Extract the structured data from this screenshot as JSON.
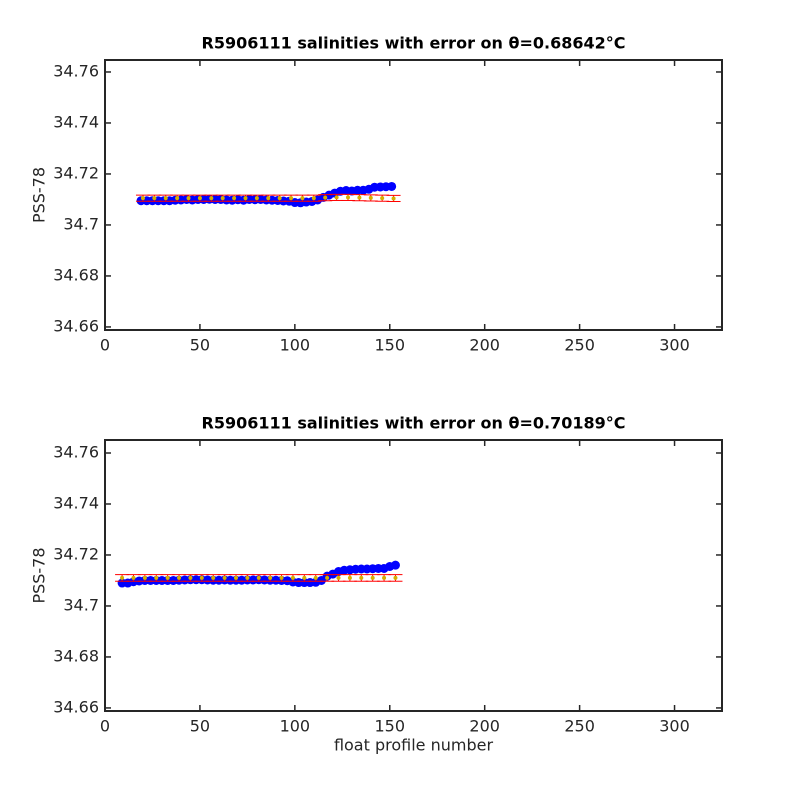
{
  "chart_data": [
    {
      "type": "errorbar",
      "title": "R5906111 salinities with error on θ=0.68642°C",
      "ylabel": "PSS-78",
      "xlim": [
        0,
        325
      ],
      "ylim": [
        34.6588,
        34.7647
      ],
      "xticks": [
        0,
        50,
        100,
        150,
        200,
        250,
        300
      ],
      "yticks": [
        34.66,
        34.68,
        34.7,
        34.72,
        34.74,
        34.76
      ],
      "series": [
        {
          "color": "#0000ff",
          "x": [
            19,
            22,
            25,
            28,
            31,
            34,
            37,
            40,
            43,
            46,
            49,
            52,
            55,
            58,
            61,
            64,
            67,
            70,
            73,
            76,
            79,
            82,
            85,
            88,
            91,
            94,
            97,
            100,
            103,
            106,
            109,
            112,
            115,
            118,
            121,
            124,
            127,
            130,
            133,
            136,
            139,
            142,
            145,
            148,
            151
          ],
          "values": [
            34.7095,
            34.7095,
            34.7095,
            34.7095,
            34.7095,
            34.7095,
            34.7097,
            34.7098,
            34.71,
            34.7098,
            34.71,
            34.71,
            34.7101,
            34.71,
            34.71,
            34.7098,
            34.7097,
            34.7099,
            34.7097,
            34.71,
            34.7099,
            34.71,
            34.7098,
            34.7097,
            34.7096,
            34.7094,
            34.7093,
            34.7088,
            34.7087,
            34.709,
            34.7092,
            34.7098,
            34.7108,
            34.7117,
            34.7125,
            34.7132,
            34.7135,
            34.7133,
            34.7136,
            34.7136,
            34.714,
            34.7148,
            34.7149,
            34.715,
            34.7151
          ]
        },
        {
          "color": "#ff0000",
          "marker_color": "#d4b000",
          "x": [
            20,
            26,
            32,
            38,
            44,
            50,
            56,
            62,
            68,
            74,
            80,
            86,
            92,
            98,
            104,
            110,
            116,
            122,
            128,
            134,
            140,
            146,
            152
          ],
          "values": [
            34.7105,
            34.7105,
            34.7105,
            34.7105,
            34.7105,
            34.7105,
            34.7105,
            34.7105,
            34.7105,
            34.7105,
            34.7105,
            34.7105,
            34.7105,
            34.7105,
            34.7105,
            34.7105,
            34.7107,
            34.7108,
            34.7108,
            34.7107,
            34.7106,
            34.7105,
            34.7104
          ],
          "errors": [
            0.0012,
            0.0012,
            0.0012,
            0.0012,
            0.0012,
            0.0012,
            0.0012,
            0.0012,
            0.0012,
            0.0012,
            0.0012,
            0.0012,
            0.0012,
            0.0012,
            0.0012,
            0.0012,
            0.0012,
            0.0012,
            0.0012,
            0.0012,
            0.0012,
            0.0012,
            0.0012
          ]
        }
      ]
    },
    {
      "type": "errorbar",
      "title": "R5906111 salinities with error on θ=0.70189°C",
      "ylabel": "PSS-78",
      "xlabel": "float profile number",
      "xlim": [
        0,
        325
      ],
      "ylim": [
        34.6588,
        34.7651
      ],
      "xticks": [
        0,
        50,
        100,
        150,
        200,
        250,
        300
      ],
      "yticks": [
        34.66,
        34.68,
        34.7,
        34.72,
        34.74,
        34.76
      ],
      "series": [
        {
          "color": "#0000ff",
          "x": [
            9,
            12,
            15,
            18,
            21,
            24,
            27,
            30,
            33,
            36,
            39,
            42,
            45,
            48,
            51,
            54,
            57,
            60,
            63,
            66,
            69,
            72,
            75,
            78,
            81,
            84,
            87,
            90,
            93,
            96,
            99,
            102,
            105,
            108,
            111,
            114,
            117,
            120,
            123,
            126,
            129,
            132,
            135,
            138,
            141,
            144,
            147,
            150,
            153
          ],
          "values": [
            34.709,
            34.709,
            34.7095,
            34.7098,
            34.71,
            34.71,
            34.71,
            34.71,
            34.71,
            34.71,
            34.7101,
            34.7102,
            34.7103,
            34.7103,
            34.7103,
            34.7102,
            34.7101,
            34.7101,
            34.7102,
            34.7101,
            34.7101,
            34.7101,
            34.7102,
            34.7102,
            34.7103,
            34.7102,
            34.7101,
            34.7101,
            34.71,
            34.7099,
            34.7094,
            34.7092,
            34.7092,
            34.7092,
            34.7093,
            34.71,
            34.7117,
            34.7125,
            34.7135,
            34.714,
            34.7142,
            34.7144,
            34.7145,
            34.7145,
            34.7146,
            34.7147,
            34.7147,
            34.7155,
            34.716
          ]
        },
        {
          "color": "#ff0000",
          "marker_color": "#d4b000",
          "x": [
            9,
            15,
            21,
            27,
            33,
            39,
            45,
            51,
            57,
            63,
            69,
            75,
            81,
            87,
            93,
            99,
            105,
            111,
            117,
            123,
            129,
            135,
            141,
            147,
            153
          ],
          "values": [
            34.711,
            34.711,
            34.711,
            34.711,
            34.711,
            34.711,
            34.711,
            34.711,
            34.711,
            34.711,
            34.711,
            34.711,
            34.711,
            34.711,
            34.711,
            34.711,
            34.711,
            34.711,
            34.711,
            34.711,
            34.711,
            34.711,
            34.711,
            34.711,
            34.711
          ],
          "errors": [
            0.0013,
            0.0013,
            0.0013,
            0.0013,
            0.0013,
            0.0013,
            0.0013,
            0.0013,
            0.0013,
            0.0013,
            0.0013,
            0.0013,
            0.0013,
            0.0013,
            0.0013,
            0.0013,
            0.0013,
            0.0013,
            0.0013,
            0.0013,
            0.0013,
            0.0013,
            0.0013,
            0.0013,
            0.0013
          ]
        }
      ]
    }
  ]
}
